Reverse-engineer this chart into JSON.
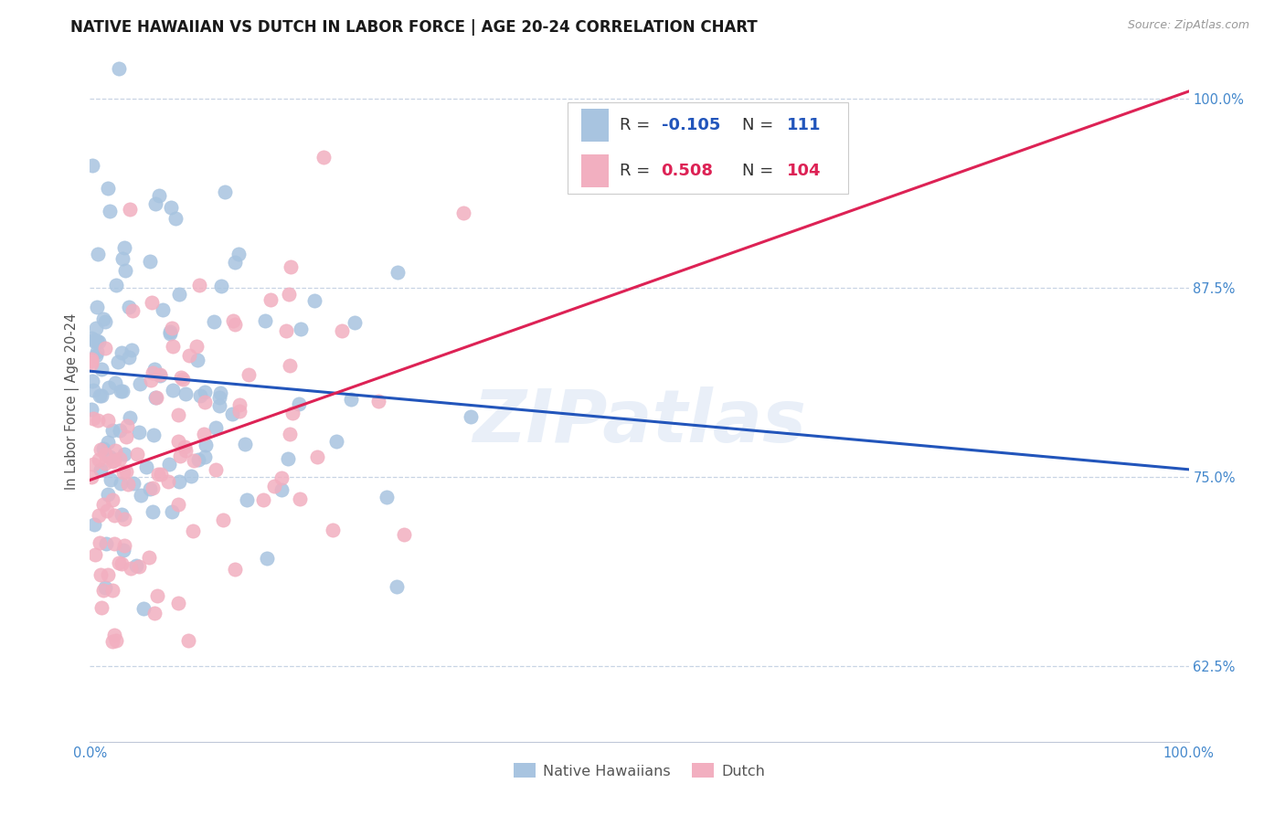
{
  "title": "NATIVE HAWAIIAN VS DUTCH IN LABOR FORCE | AGE 20-24 CORRELATION CHART",
  "source": "Source: ZipAtlas.com",
  "ylabel": "In Labor Force | Age 20-24",
  "xlim": [
    0.0,
    1.0
  ],
  "ylim": [
    0.575,
    1.025
  ],
  "yticks": [
    0.625,
    0.75,
    0.875,
    1.0
  ],
  "ytick_labels": [
    "62.5%",
    "75.0%",
    "87.5%",
    "100.0%"
  ],
  "xtick_positions": [
    0.0,
    0.2,
    0.4,
    0.6,
    0.8,
    1.0
  ],
  "xtick_labels": [
    "0.0%",
    "",
    "",
    "",
    "",
    "100.0%"
  ],
  "r_blue": -0.105,
  "n_blue": 111,
  "r_pink": 0.508,
  "n_pink": 104,
  "watermark": "ZIPatlas",
  "blue_scatter_color": "#a8c4e0",
  "pink_scatter_color": "#f2afc0",
  "blue_line_color": "#2255bb",
  "pink_line_color": "#dd2255",
  "background_color": "#ffffff",
  "grid_color": "#c8d4e4",
  "title_fontsize": 12,
  "tick_label_color": "#4488cc",
  "source_color": "#999999",
  "ylabel_color": "#555555",
  "blue_line_start_y": 0.82,
  "blue_line_end_y": 0.755,
  "pink_line_start_y": 0.748,
  "pink_line_end_y": 1.005
}
